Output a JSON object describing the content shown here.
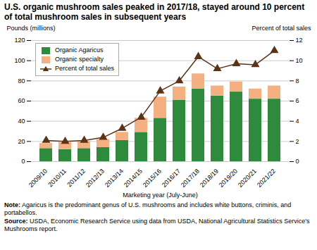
{
  "chart_data": {
    "type": "bar",
    "title": "U.S. organic mushroom sales peaked in 2017/18, stayed around 10 percent of total mushroom sales in subsequent years",
    "categories": [
      "2009/10",
      "2010/11",
      "2011/12",
      "2012/13",
      "2013/14",
      "2014/15",
      "2015/16",
      "2016/17",
      "2017/18",
      "2018/19",
      "2019/20",
      "2020/21",
      "2021/22"
    ],
    "series": [
      {
        "name": "Organic Agaricus",
        "color": "#2e8b3e",
        "type": "bar",
        "values": [
          13,
          12,
          13,
          14,
          21,
          29,
          43,
          61,
          72,
          65,
          69,
          62,
          62
        ]
      },
      {
        "name": "Organic specialty",
        "color": "#f4b080",
        "type": "bar",
        "values": [
          5,
          7,
          7,
          8,
          8,
          14,
          21,
          13,
          15,
          10,
          10,
          10,
          13
        ]
      },
      {
        "name": "Percent of total sales",
        "color": "#5c3317",
        "type": "line",
        "axis": "y2",
        "marker": "triangle",
        "values": [
          2.1,
          2.0,
          2.1,
          2.4,
          3.3,
          4.4,
          7.0,
          8.0,
          10.4,
          9.2,
          9.7,
          9.6,
          11.0
        ]
      }
    ],
    "stacked": true,
    "xlabel": "Marketing year (July-June)",
    "ylabel": "Pounds (millions)",
    "y2label": "Percent of total sales",
    "ylim": [
      0,
      120
    ],
    "yticks": [
      0,
      20,
      40,
      60,
      80,
      100,
      120
    ],
    "y2lim": [
      0,
      12
    ],
    "y2ticks": [
      0,
      2,
      4,
      6,
      8,
      10,
      12
    ],
    "grid": true,
    "legend": "upper left",
    "annotations": [
      "Note: Agaricus is the predominant genus of U.S. mushrooms and includes white buttons, criminis, and portabellos.",
      "Source: USDA, Economic Research Service using data from USDA, National Agricultural Statistics Service's Mushrooms report."
    ]
  }
}
